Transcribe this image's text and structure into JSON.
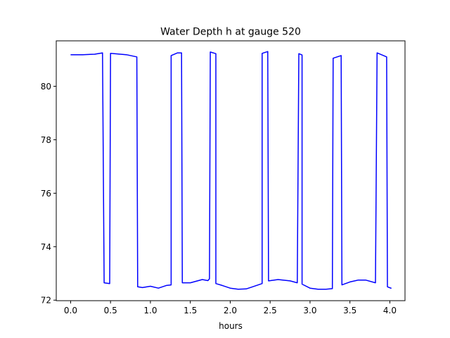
{
  "chart_data": {
    "type": "line",
    "title": "Water Depth h at gauge 520",
    "xlabel": "hours",
    "ylabel": "",
    "xlim": [
      -0.18,
      4.19
    ],
    "ylim": [
      71.98,
      81.7
    ],
    "xticks": [
      0.0,
      0.5,
      1.0,
      1.5,
      2.0,
      2.5,
      3.0,
      3.5,
      4.0
    ],
    "xtick_labels": [
      "0.0",
      "0.5",
      "1.0",
      "1.5",
      "2.0",
      "2.5",
      "3.0",
      "3.5",
      "4.0"
    ],
    "yticks": [
      72,
      74,
      76,
      78,
      80
    ],
    "ytick_labels": [
      "72",
      "74",
      "76",
      "78",
      "80"
    ],
    "grid": false,
    "colors": {
      "series": "#0000ff"
    },
    "series": [
      {
        "name": "",
        "x": [
          0.0,
          0.15,
          0.3,
          0.4,
          0.42,
          0.49,
          0.5,
          0.7,
          0.83,
          0.84,
          0.9,
          1.0,
          1.1,
          1.2,
          1.26,
          1.26,
          1.34,
          1.39,
          1.4,
          1.5,
          1.65,
          1.72,
          1.74,
          1.75,
          1.82,
          1.82,
          1.9,
          2.0,
          2.1,
          2.2,
          2.28,
          2.4,
          2.4,
          2.47,
          2.48,
          2.6,
          2.75,
          2.84,
          2.86,
          2.9,
          2.9,
          3.0,
          3.1,
          3.2,
          3.28,
          3.29,
          3.39,
          3.4,
          3.5,
          3.6,
          3.7,
          3.82,
          3.84,
          3.96,
          3.97,
          4.02
        ],
        "y": [
          81.18,
          81.18,
          81.2,
          81.25,
          72.65,
          72.62,
          81.23,
          81.18,
          81.1,
          72.5,
          72.47,
          72.52,
          72.45,
          72.55,
          72.57,
          81.15,
          81.25,
          81.25,
          72.65,
          72.65,
          72.77,
          72.73,
          72.8,
          81.28,
          81.22,
          72.62,
          72.55,
          72.45,
          72.41,
          72.42,
          72.5,
          72.62,
          81.23,
          81.3,
          72.72,
          72.77,
          72.72,
          72.65,
          81.22,
          81.17,
          72.6,
          72.45,
          72.41,
          72.41,
          72.43,
          81.05,
          81.15,
          72.57,
          72.68,
          72.75,
          72.75,
          72.65,
          81.25,
          81.1,
          72.5,
          72.44
        ]
      }
    ]
  }
}
